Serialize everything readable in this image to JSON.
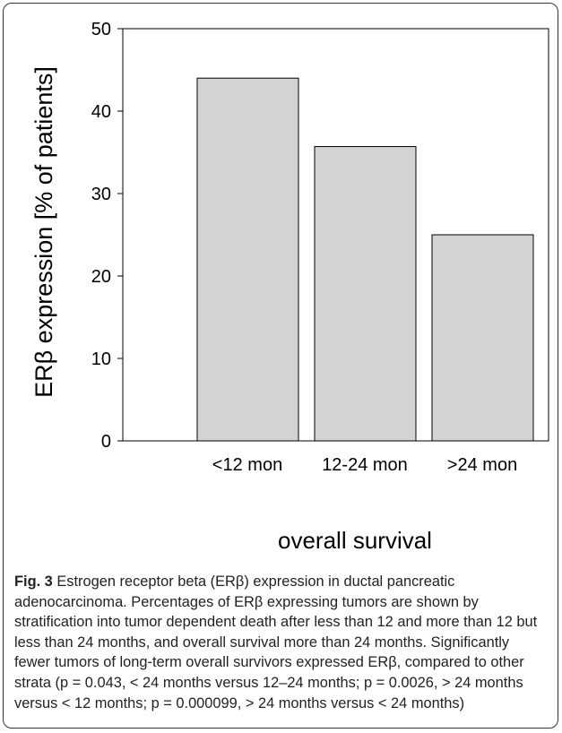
{
  "chart_data": {
    "type": "bar",
    "title": "",
    "xlabel": "overall survival",
    "ylabel": "ERβ expression [% of patients]",
    "categories": [
      "<12 mon",
      "12-24 mon",
      ">24 mon"
    ],
    "values": [
      44,
      35.7,
      25
    ],
    "ylim": [
      0,
      50
    ],
    "yticks": [
      "0",
      "10",
      "20",
      "30",
      "40",
      "50"
    ],
    "bar_color": "#d3d3d3",
    "bar_edge_color": "#000000",
    "grid": false,
    "legend": "none"
  },
  "caption": {
    "label": "Fig. 3",
    "text": "Estrogen receptor beta (ERβ) expression in ductal pancreatic adenocarcinoma. Percentages of ERβ expressing tumors are shown by stratification into tumor dependent death after less than 12 and more than 12 but less than 24 months, and overall survival more than 24 months. Significantly fewer tumors of long-term overall survivors expressed ERβ, compared to other strata (p = 0.043, < 24 months versus 12–24 months; p = 0.0026, > 24 months versus < 12 months; p = 0.000099, > 24 months versus < 24 months)"
  }
}
